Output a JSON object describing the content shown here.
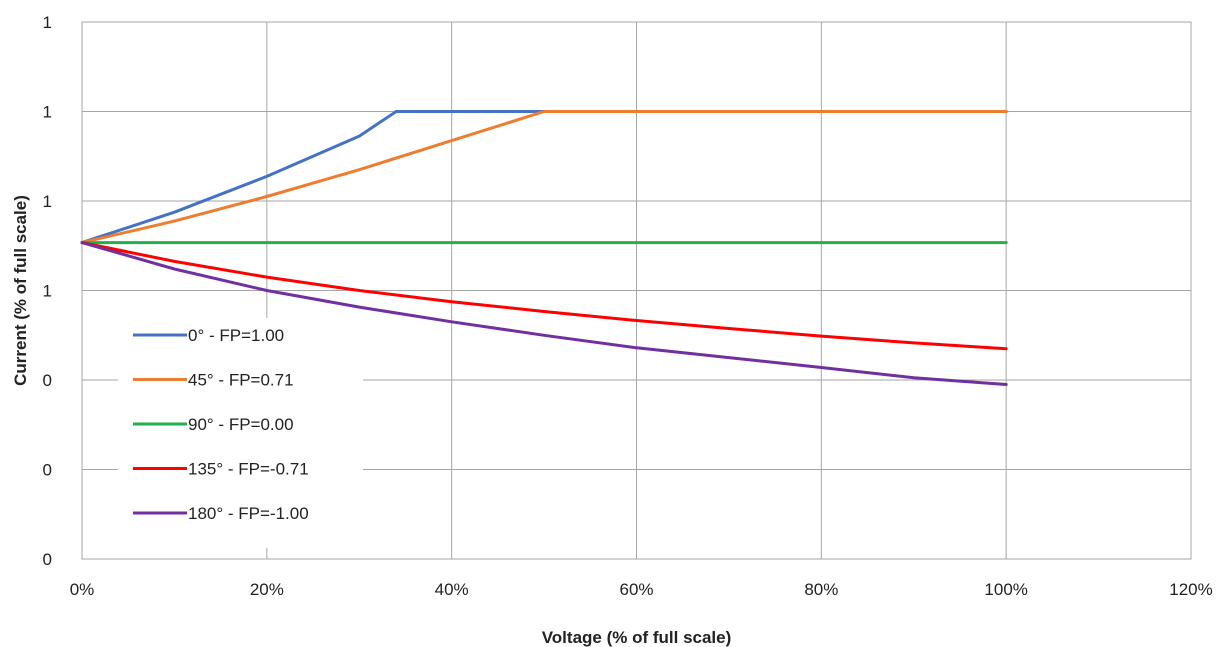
{
  "chart_data": {
    "type": "line",
    "xlabel": "Voltage (% of full scale)",
    "ylabel": "Current (% of full scale)",
    "xlim": [
      0,
      1.2
    ],
    "ylim": [
      0,
      1.2
    ],
    "x_ticks": [
      0,
      0.2,
      0.4,
      0.6,
      0.8,
      1.0,
      1.2
    ],
    "x_tick_labels": [
      "0%",
      "20%",
      "40%",
      "60%",
      "80%",
      "100%",
      "120%"
    ],
    "y_ticks": [
      0,
      0.2,
      0.4,
      0.6,
      0.8,
      1.0,
      1.2
    ],
    "y_tick_labels": [
      "0",
      "0",
      "0",
      "1",
      "1",
      "1",
      "1"
    ],
    "grid": true,
    "legend_position": "bottom-left",
    "series": [
      {
        "name": "0° - FP=1.00",
        "color": "#4472C4",
        "points": [
          [
            0,
            0.707
          ],
          [
            0.1,
            0.775
          ],
          [
            0.2,
            0.855
          ],
          [
            0.3,
            0.945
          ],
          [
            0.34,
            1.0
          ],
          [
            0.5,
            1.0
          ],
          [
            1.0,
            1.0
          ]
        ]
      },
      {
        "name": "45° - FP=0.71",
        "color": "#ED7D31",
        "points": [
          [
            0,
            0.707
          ],
          [
            0.1,
            0.755
          ],
          [
            0.2,
            0.81
          ],
          [
            0.3,
            0.87
          ],
          [
            0.4,
            0.935
          ],
          [
            0.5,
            1.0
          ],
          [
            1.0,
            1.0
          ]
        ]
      },
      {
        "name": "90° - FP=0.00",
        "color": "#22B04B",
        "points": [
          [
            0,
            0.707
          ],
          [
            1.0,
            0.707
          ]
        ]
      },
      {
        "name": "135° - FP=-0.71",
        "color": "#FF0000",
        "points": [
          [
            0,
            0.707
          ],
          [
            0.1,
            0.665
          ],
          [
            0.2,
            0.63
          ],
          [
            0.3,
            0.6
          ],
          [
            0.4,
            0.575
          ],
          [
            0.5,
            0.553
          ],
          [
            0.6,
            0.533
          ],
          [
            0.7,
            0.515
          ],
          [
            0.8,
            0.498
          ],
          [
            0.9,
            0.483
          ],
          [
            1.0,
            0.47
          ]
        ]
      },
      {
        "name": "180° - FP=-1.00",
        "color": "#7030A0",
        "points": [
          [
            0,
            0.707
          ],
          [
            0.1,
            0.648
          ],
          [
            0.2,
            0.6
          ],
          [
            0.3,
            0.563
          ],
          [
            0.4,
            0.53
          ],
          [
            0.5,
            0.5
          ],
          [
            0.6,
            0.472
          ],
          [
            0.7,
            0.45
          ],
          [
            0.8,
            0.428
          ],
          [
            0.9,
            0.405
          ],
          [
            1.0,
            0.39
          ]
        ]
      }
    ]
  }
}
